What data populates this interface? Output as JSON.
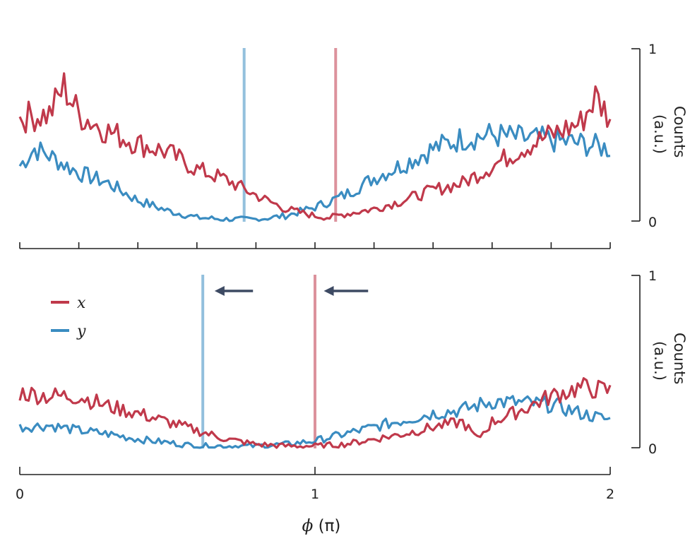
{
  "colors": {
    "x": "#c0394b",
    "y": "#3a8cc1",
    "arrow": "#3d4a63",
    "axis": "#222222"
  },
  "xaxis": {
    "label_symbol": "ϕ",
    "label_unit": " (π)",
    "ticks": [
      "0",
      "1",
      "2"
    ],
    "range": [
      0,
      2
    ]
  },
  "legend": [
    {
      "key": "x",
      "label": "x"
    },
    {
      "key": "y",
      "label": "y"
    }
  ],
  "chart_data": [
    {
      "type": "line",
      "panel": "top",
      "xlabel": "ϕ (π)",
      "ylabel": "Counts\n(a.u.)",
      "xlim": [
        0,
        2
      ],
      "ylim": [
        0,
        1
      ],
      "yticks": [
        "0",
        "1"
      ],
      "series": [
        {
          "name": "x",
          "color": "#c0394b",
          "x": [
            0,
            0.1,
            0.15,
            0.2,
            0.3,
            0.4,
            0.5,
            0.6,
            0.7,
            0.8,
            0.9,
            1.0,
            1.05,
            1.1,
            1.2,
            1.3,
            1.4,
            1.5,
            1.6,
            1.7,
            1.8,
            1.9,
            1.95,
            2.0
          ],
          "values": [
            0.6,
            0.62,
            0.78,
            0.62,
            0.52,
            0.45,
            0.4,
            0.3,
            0.24,
            0.15,
            0.07,
            0.03,
            0.02,
            0.04,
            0.07,
            0.12,
            0.18,
            0.22,
            0.32,
            0.42,
            0.5,
            0.57,
            0.72,
            0.6
          ]
        },
        {
          "name": "y",
          "color": "#3a8cc1",
          "x": [
            0,
            0.05,
            0.1,
            0.2,
            0.3,
            0.4,
            0.5,
            0.6,
            0.7,
            0.8,
            0.9,
            1.0,
            1.1,
            1.2,
            1.3,
            1.4,
            1.5,
            1.6,
            1.7,
            1.8,
            1.9,
            2.0
          ],
          "values": [
            0.32,
            0.42,
            0.38,
            0.28,
            0.22,
            0.12,
            0.06,
            0.02,
            0.01,
            0.01,
            0.03,
            0.08,
            0.15,
            0.25,
            0.33,
            0.42,
            0.48,
            0.5,
            0.48,
            0.47,
            0.45,
            0.42
          ]
        }
      ],
      "markers": [
        {
          "series": "y",
          "x": 0.76
        },
        {
          "series": "x",
          "x": 1.07
        }
      ]
    },
    {
      "type": "line",
      "panel": "bottom",
      "xlabel": "ϕ (π)",
      "ylabel": "Counts\n(a.u.)",
      "xlim": [
        0,
        2
      ],
      "ylim": [
        0,
        1
      ],
      "yticks": [
        "0",
        "1"
      ],
      "series": [
        {
          "name": "x",
          "color": "#c0394b",
          "x": [
            0,
            0.1,
            0.2,
            0.3,
            0.4,
            0.5,
            0.6,
            0.7,
            0.8,
            0.9,
            1.0,
            1.1,
            1.2,
            1.3,
            1.4,
            1.5,
            1.55,
            1.6,
            1.7,
            1.8,
            1.9,
            2.0
          ],
          "values": [
            0.32,
            0.3,
            0.3,
            0.24,
            0.2,
            0.15,
            0.1,
            0.05,
            0.02,
            0.01,
            0.01,
            0.02,
            0.05,
            0.08,
            0.12,
            0.15,
            0.05,
            0.15,
            0.22,
            0.3,
            0.35,
            0.33
          ]
        },
        {
          "name": "y",
          "color": "#3a8cc1",
          "x": [
            0,
            0.1,
            0.2,
            0.3,
            0.4,
            0.5,
            0.6,
            0.7,
            0.8,
            0.9,
            1.0,
            1.1,
            1.2,
            1.3,
            1.4,
            1.5,
            1.6,
            1.7,
            1.8,
            1.9,
            2.0
          ],
          "values": [
            0.12,
            0.13,
            0.1,
            0.08,
            0.05,
            0.03,
            0.01,
            0.01,
            0.01,
            0.02,
            0.04,
            0.08,
            0.12,
            0.16,
            0.2,
            0.22,
            0.27,
            0.26,
            0.25,
            0.2,
            0.16
          ]
        }
      ],
      "markers": [
        {
          "series": "y",
          "x": 0.62
        },
        {
          "series": "x",
          "x": 1.0
        }
      ],
      "arrows": [
        {
          "from": 0.79,
          "to": 0.66
        },
        {
          "from": 1.18,
          "to": 1.03
        }
      ]
    }
  ]
}
